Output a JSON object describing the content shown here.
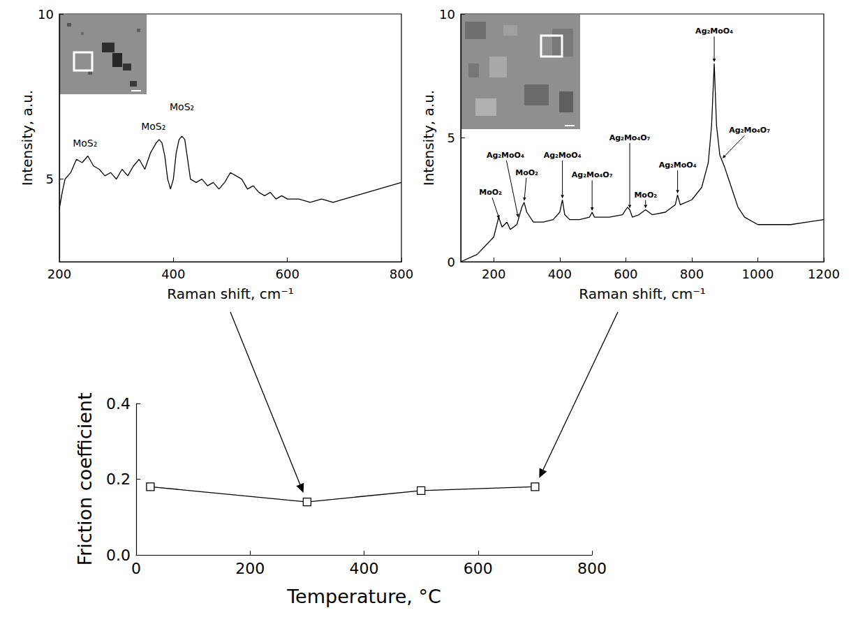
{
  "chart_data": [
    {
      "type": "line",
      "x_label": "Raman shift, cm⁻¹",
      "y_label": "Intensity, a.u.",
      "x": [
        200,
        205,
        210,
        220,
        230,
        240,
        250,
        260,
        270,
        280,
        290,
        300,
        310,
        320,
        330,
        340,
        350,
        360,
        370,
        375,
        380,
        385,
        390,
        395,
        400,
        405,
        410,
        415,
        420,
        425,
        430,
        440,
        450,
        460,
        470,
        480,
        490,
        500,
        510,
        520,
        530,
        540,
        550,
        560,
        570,
        580,
        590,
        600,
        620,
        640,
        660,
        680,
        700,
        720,
        740,
        760,
        780,
        800
      ],
      "values": [
        4.1,
        4.6,
        5.0,
        5.2,
        5.6,
        5.5,
        5.7,
        5.4,
        5.3,
        5.1,
        5.2,
        5.0,
        5.3,
        5.1,
        5.4,
        5.6,
        5.3,
        5.8,
        6.1,
        6.2,
        6.1,
        5.7,
        5.0,
        4.7,
        5.0,
        5.8,
        6.2,
        6.3,
        6.2,
        5.6,
        5.0,
        4.9,
        5.0,
        4.8,
        4.9,
        4.7,
        4.9,
        5.2,
        5.1,
        5.0,
        4.7,
        4.8,
        4.6,
        4.5,
        4.6,
        4.4,
        4.5,
        4.4,
        4.4,
        4.3,
        4.4,
        4.3,
        4.4,
        4.5,
        4.6,
        4.7,
        4.8,
        4.9
      ],
      "color": "#000000",
      "marker": "none",
      "line_style": "solid",
      "xlim": [
        200,
        800
      ],
      "xticks": [
        200,
        400,
        600,
        800
      ],
      "ylim": [
        2.5,
        10
      ],
      "yticks": [
        5,
        10
      ],
      "grid": false,
      "annotations": [
        {
          "text": "MoS₂",
          "x": 245,
          "y": 6.1
        },
        {
          "text": "MoS₂",
          "x": 365,
          "y": 6.6
        },
        {
          "text": "MoS₂",
          "x": 415,
          "y": 7.2
        }
      ],
      "linked_temperature": 300
    },
    {
      "type": "line",
      "x_label": "Raman shift, cm⁻¹",
      "y_label": "Intensity, a.u.",
      "x": [
        100,
        150,
        200,
        215,
        225,
        240,
        250,
        270,
        285,
        292,
        300,
        320,
        350,
        380,
        400,
        408,
        415,
        430,
        460,
        490,
        498,
        505,
        550,
        590,
        605,
        612,
        620,
        640,
        660,
        680,
        720,
        750,
        757,
        765,
        800,
        830,
        850,
        860,
        868,
        875,
        885,
        900,
        920,
        940,
        960,
        1000,
        1050,
        1100,
        1150,
        1200
      ],
      "values": [
        0.0,
        0.3,
        1.0,
        1.8,
        1.4,
        1.6,
        1.3,
        1.5,
        2.2,
        2.4,
        2.0,
        1.6,
        1.6,
        1.7,
        2.0,
        2.5,
        1.9,
        1.7,
        1.7,
        1.8,
        2.0,
        1.8,
        1.8,
        1.9,
        2.2,
        2.1,
        1.8,
        1.9,
        2.1,
        1.9,
        2.0,
        2.3,
        2.7,
        2.3,
        2.5,
        3.0,
        4.0,
        5.5,
        8.0,
        5.5,
        4.3,
        3.8,
        3.0,
        2.2,
        1.8,
        1.5,
        1.5,
        1.5,
        1.6,
        1.7
      ],
      "color": "#000000",
      "marker": "none",
      "line_style": "solid",
      "xlim": [
        100,
        1200
      ],
      "xticks": [
        200,
        400,
        600,
        800,
        1000,
        1200
      ],
      "ylim": [
        0,
        10
      ],
      "yticks": [
        0,
        5,
        10
      ],
      "grid": false,
      "arrow_annotations": [
        {
          "text": "MoO₂",
          "x": 218,
          "y": 2.8,
          "label_x": 190
        },
        {
          "text": "Ag₂MoO₄",
          "x": 275,
          "y": 4.3,
          "label_x": 235
        },
        {
          "text": "MoO₂",
          "x": 292,
          "y": 3.6,
          "label_x": 300
        },
        {
          "text": "Ag₂MoO₄",
          "x": 408,
          "y": 4.3
        },
        {
          "text": "Ag₂Mo₄O₇",
          "x": 498,
          "y": 3.5
        },
        {
          "text": "Ag₂Mo₄O₇",
          "x": 612,
          "y": 5.0
        },
        {
          "text": "MoO₂",
          "x": 660,
          "y": 2.7
        },
        {
          "text": "Ag₂MoO₄",
          "x": 757,
          "y": 3.9
        },
        {
          "text": "Ag₂MoO₄",
          "x": 868,
          "y": 9.3
        },
        {
          "text": "Ag₂Mo₄O₇",
          "x": 890,
          "y": 5.3,
          "label_x": 975
        }
      ],
      "linked_temperature": 700
    },
    {
      "type": "line",
      "x_label": "Temperature, °C",
      "y_label": "Friction coefficient",
      "x": [
        25,
        300,
        500,
        700
      ],
      "values": [
        0.18,
        0.14,
        0.17,
        0.18
      ],
      "color": "#000000",
      "marker": "square",
      "line_style": "solid",
      "xlim": [
        0,
        800
      ],
      "xticks": [
        0,
        200,
        400,
        600,
        800
      ],
      "ylim": [
        0,
        0.4
      ],
      "yticks": [
        {
          "value": 0,
          "label": "0.0"
        },
        0.2,
        0.4
      ],
      "grid": false
    }
  ]
}
